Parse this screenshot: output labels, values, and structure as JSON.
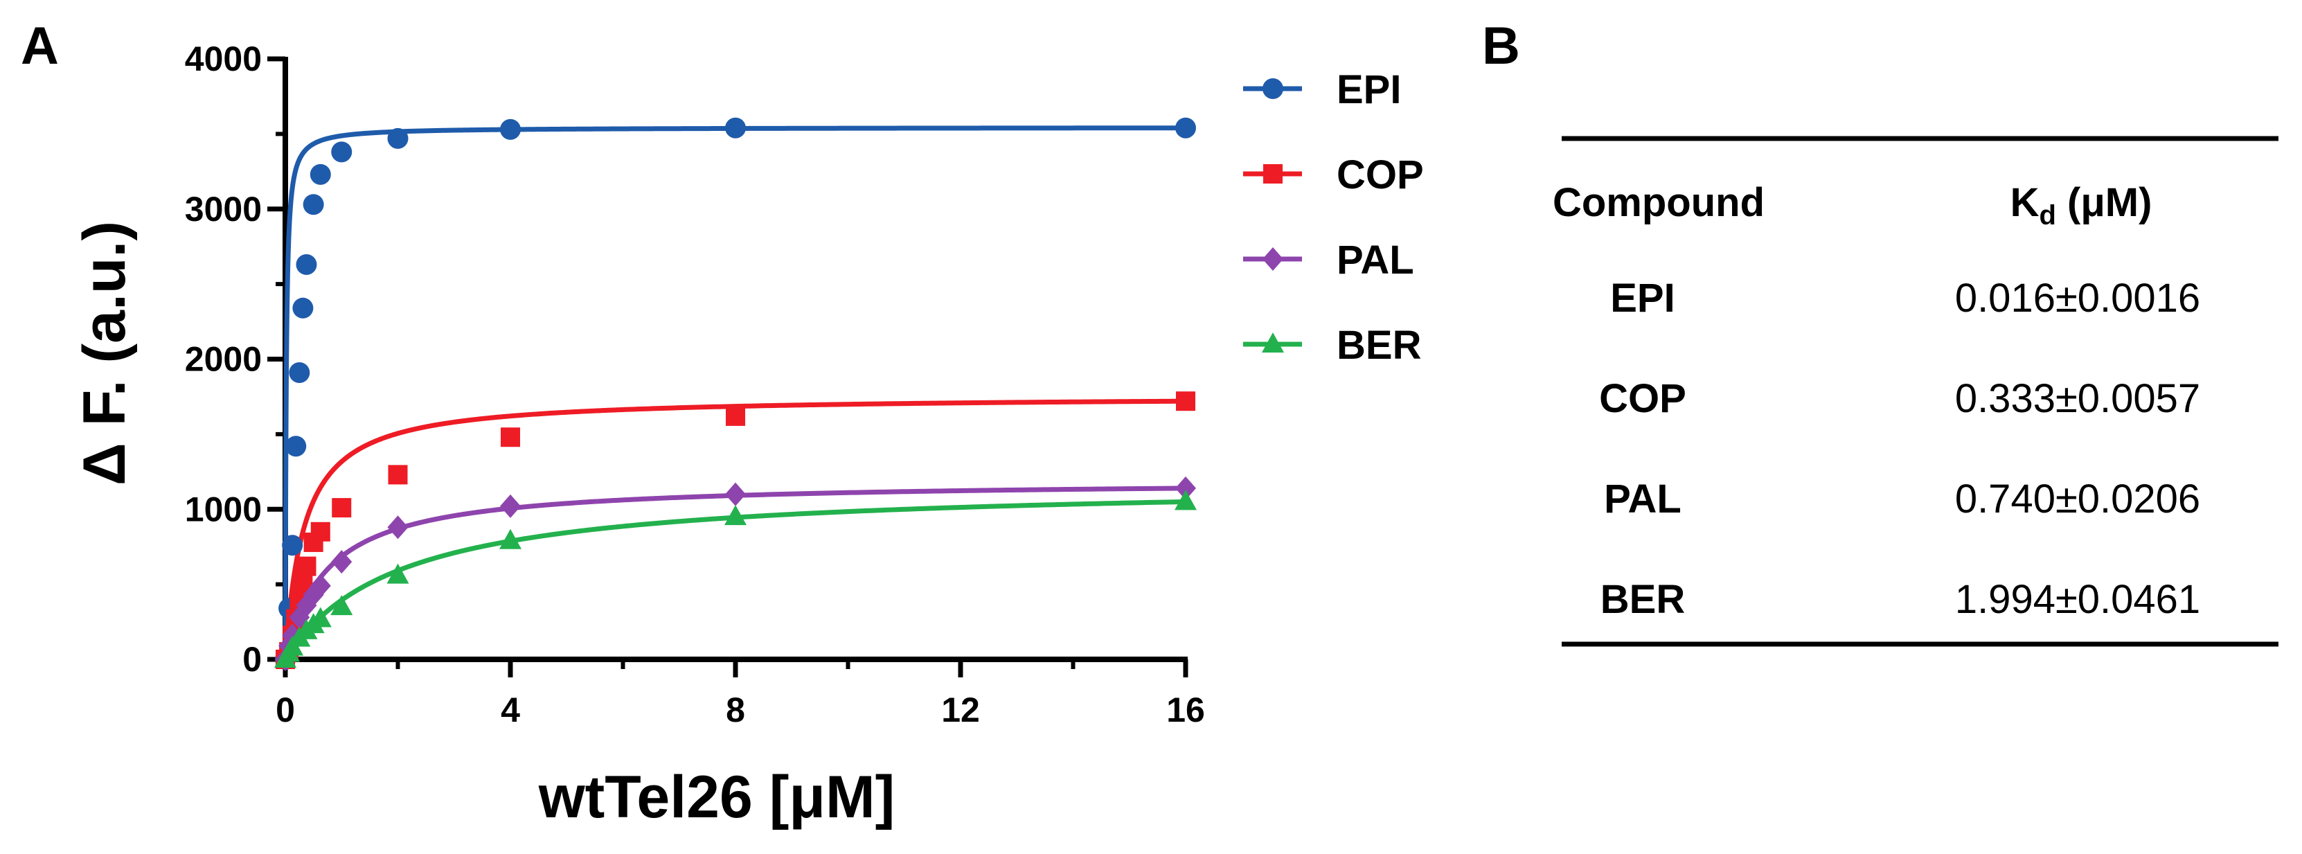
{
  "panel_a_label": "A",
  "panel_b_label": "B",
  "chart_data": {
    "type": "line",
    "title": "",
    "xlabel": "wtTel26 [μM]",
    "ylabel": "Δ F. (a.u.)",
    "xlim": [
      0,
      16
    ],
    "ylim": [
      0,
      4000
    ],
    "xticks": [
      0,
      4,
      8,
      12,
      16
    ],
    "yticks": [
      0,
      1000,
      2000,
      3000,
      4000
    ],
    "legend_position": "top-right",
    "series": [
      {
        "name": "EPI",
        "color": "#1f5bab",
        "marker": "circle",
        "kd": 0.016,
        "x": [
          0,
          0.0625,
          0.125,
          0.1875,
          0.25,
          0.3125,
          0.375,
          0.5,
          0.625,
          1,
          2,
          4,
          8,
          16
        ],
        "y": [
          0,
          340,
          760,
          1420,
          1910,
          2340,
          2630,
          3030,
          3230,
          3380,
          3470,
          3530,
          3540,
          3540
        ]
      },
      {
        "name": "COP",
        "color": "#ee1c25",
        "marker": "square",
        "kd": 0.333,
        "x": [
          0,
          0.0625,
          0.125,
          0.1875,
          0.25,
          0.3125,
          0.375,
          0.5,
          0.625,
          1,
          2,
          4,
          8,
          16
        ],
        "y": [
          0,
          50,
          160,
          270,
          400,
          520,
          620,
          780,
          850,
          1010,
          1230,
          1480,
          1620,
          1720
        ]
      },
      {
        "name": "PAL",
        "color": "#8e44ad",
        "marker": "diamond",
        "kd": 0.74,
        "x": [
          0,
          0.0625,
          0.125,
          0.25,
          0.375,
          0.5,
          0.625,
          1,
          2,
          4,
          8,
          16
        ],
        "y": [
          0,
          90,
          160,
          280,
          360,
          430,
          490,
          650,
          880,
          1020,
          1100,
          1140
        ]
      },
      {
        "name": "BER",
        "color": "#23b14d",
        "marker": "triangle",
        "kd": 1.994,
        "x": [
          0,
          0.0625,
          0.125,
          0.25,
          0.375,
          0.5,
          0.625,
          1,
          2,
          4,
          8,
          16
        ],
        "y": [
          0,
          40,
          80,
          140,
          190,
          230,
          270,
          350,
          560,
          790,
          950,
          1050
        ]
      }
    ]
  },
  "table": {
    "headers": {
      "compound": "Compound",
      "kd_main": "K",
      "kd_sub": "d",
      "kd_unit": " (μM)"
    },
    "rows": [
      {
        "compound": "EPI",
        "kd": "0.016±0.0016"
      },
      {
        "compound": "COP",
        "kd": "0.333±0.0057"
      },
      {
        "compound": "PAL",
        "kd": "0.740±0.0206"
      },
      {
        "compound": "BER",
        "kd": "1.994±0.0461"
      }
    ]
  }
}
